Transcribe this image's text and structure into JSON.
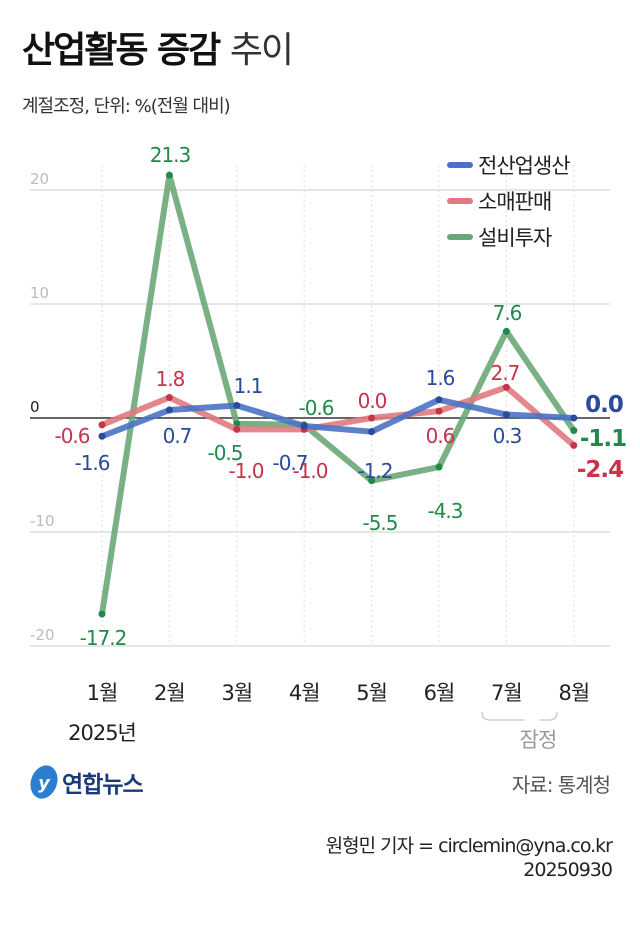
{
  "title_bold": "산업활동 증감",
  "title_light": "추이",
  "subtitle": "계절조정, 단위: %(전월 대비)",
  "source": "자료: 통계청",
  "byline": "원형민 기자 = circlemin@yna.co.kr",
  "date": "20250930",
  "logo_text": "연합뉴스",
  "year_label": "2025년",
  "prelim_label": "잠정",
  "chart_data": {
    "type": "line",
    "title": "산업활동 증감 추이",
    "ylabel": "%",
    "categories": [
      "1월",
      "2월",
      "3월",
      "4월",
      "5월",
      "6월",
      "7월",
      "8월"
    ],
    "ylim": [
      -20,
      20
    ],
    "yticks": [
      "20",
      "10",
      "0",
      "-10",
      "-20"
    ],
    "grid": true,
    "legend_position": "top-right",
    "series": [
      {
        "name": "전산업생산",
        "color": "#4a72c4",
        "label_color": "#2a4a9a",
        "values": [
          -1.6,
          0.7,
          1.1,
          -0.7,
          -1.2,
          1.6,
          0.3,
          0.0
        ],
        "labels": [
          "-1.6",
          "0.7",
          "1.1",
          "-0.7",
          "-1.2",
          "1.6",
          "0.3",
          "0.0"
        ]
      },
      {
        "name": "소매판매",
        "color": "#e07a80",
        "label_color": "#c8324a",
        "values": [
          -0.6,
          1.8,
          -1.0,
          -1.0,
          0.0,
          0.6,
          2.7,
          -2.4
        ],
        "labels": [
          "-0.6",
          "1.8",
          "-1.0",
          "-1.0",
          "0.0",
          "0.6",
          "2.7",
          "-2.4"
        ]
      },
      {
        "name": "설비투자",
        "color": "#6aa878",
        "label_color": "#1f8a4a",
        "values": [
          -17.2,
          21.3,
          -0.5,
          -0.6,
          -5.5,
          -4.3,
          7.6,
          -1.1
        ],
        "labels": [
          "-17.2",
          "21.3",
          "-0.5",
          "-0.6",
          "-5.5",
          "-4.3",
          "7.6",
          "-1.1"
        ]
      }
    ]
  }
}
